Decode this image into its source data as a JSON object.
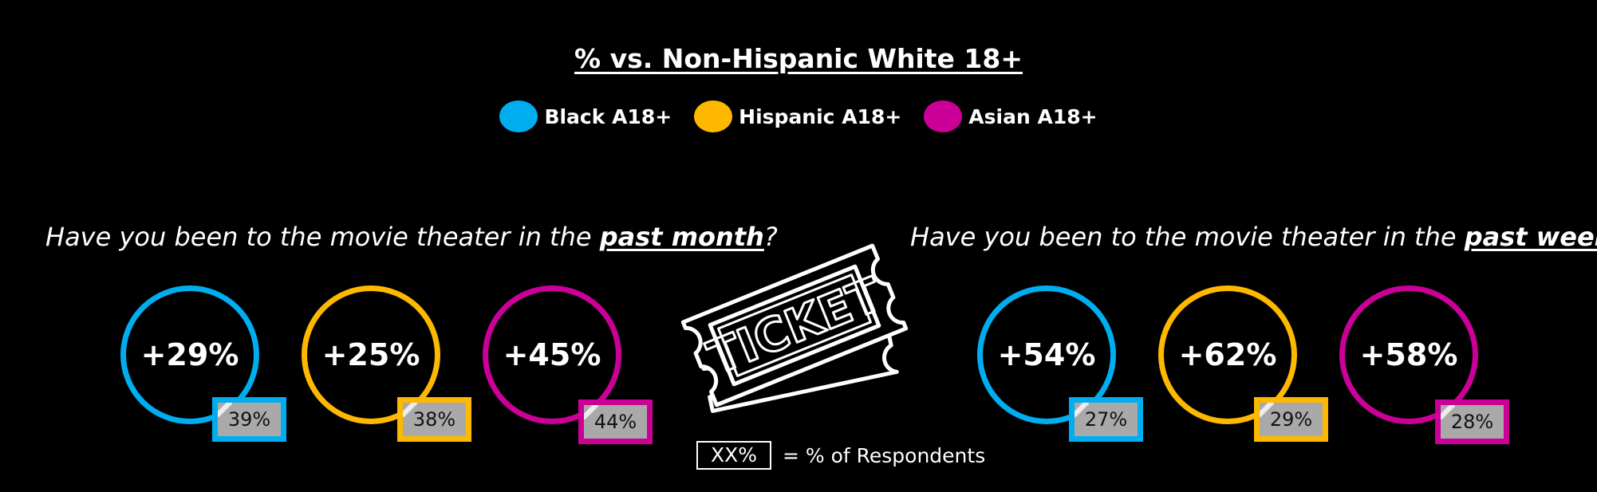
{
  "title": "% vs. Non-Hispanic White 18+",
  "legend": [
    {
      "label": "Black A18+",
      "color": "#00aeef"
    },
    {
      "label": "Hispanic A18+",
      "color": "#ffb800"
    },
    {
      "label": "Asian A18+",
      "color": "#cc0099"
    }
  ],
  "questions": [
    {
      "prefix": "Have you been to the movie theater in the ",
      "emphasis": "past month",
      "suffix": "?"
    },
    {
      "prefix": "Have you been to the movie theater in the ",
      "emphasis": "past week",
      "suffix": "?"
    }
  ],
  "ticket": {
    "icon": "ticket-icon",
    "text": "TICKET"
  },
  "key": {
    "box_label": "XX%",
    "text": "= % of Respondents"
  },
  "chart_data": [
    {
      "type": "table",
      "question": "Have you been to the movie theater in the past month?",
      "series": [
        "Black A18+",
        "Hispanic A18+",
        "Asian A18+"
      ],
      "vs_non_hispanic_white": [
        "+29%",
        "+25%",
        "+45%"
      ],
      "pct_of_respondents": [
        "39%",
        "38%",
        "44%"
      ]
    },
    {
      "type": "table",
      "question": "Have you been to the movie theater in the past week?",
      "series": [
        "Black A18+",
        "Hispanic A18+",
        "Asian A18+"
      ],
      "vs_non_hispanic_white": [
        "+54%",
        "+62%",
        "+58%"
      ],
      "pct_of_respondents": [
        "27%",
        "29%",
        "28%"
      ]
    }
  ]
}
